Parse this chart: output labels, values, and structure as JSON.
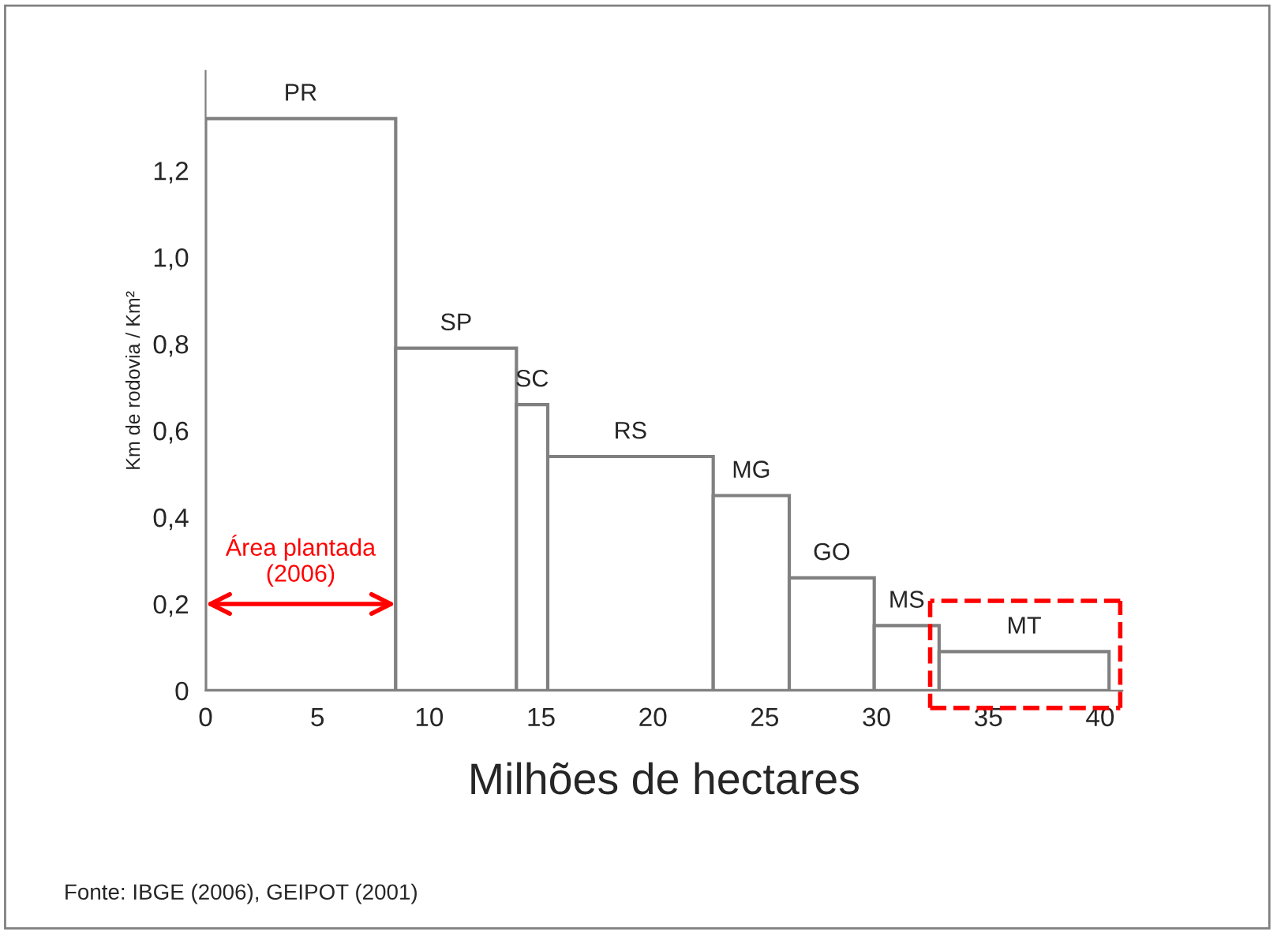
{
  "chart_data": {
    "type": "histogram",
    "xlabel": "Milhões de hectares",
    "ylabel": "Km de rodovia / Km²",
    "categories": [
      "PR",
      "SP",
      "SC",
      "RS",
      "MG",
      "GO",
      "MS",
      "MT"
    ],
    "bins": [
      0,
      8.5,
      13.9,
      15.3,
      22.7,
      26.1,
      29.9,
      32.8,
      40.4
    ],
    "values": [
      1.32,
      0.79,
      0.66,
      0.54,
      0.45,
      0.26,
      0.15,
      0.09
    ],
    "color": "#808080",
    "xlim": [
      0,
      41
    ],
    "xticks": [
      0,
      5,
      10,
      15,
      20,
      25,
      30,
      35,
      40
    ],
    "ylim": [
      0,
      1.43
    ],
    "yticks": [
      0,
      {
        "value": 0.2,
        "label": "0,2"
      },
      {
        "value": 0.4,
        "label": "0,4"
      },
      {
        "value": 0.6,
        "label": "0,6"
      },
      {
        "value": 0.8,
        "label": "0,8"
      },
      {
        "value": 1.0,
        "label": "1,0"
      },
      {
        "value": 1.2,
        "label": "1,2"
      }
    ],
    "grid": false,
    "annotations": [
      "Área plantada\n(2006)",
      "Fonte: IBGE (2006), GEIPOT (2001)"
    ]
  }
}
